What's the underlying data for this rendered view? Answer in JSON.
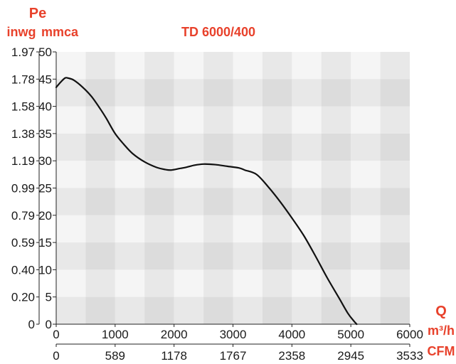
{
  "chart_data": {
    "type": "line",
    "title": "TD 6000/400",
    "y_axis": {
      "symbol": "Pe",
      "left_unit": "inwg",
      "right_unit": "mmca",
      "ticks_mmca": [
        "0",
        "5",
        "10",
        "15",
        "20",
        "25",
        "30",
        "35",
        "40",
        "45",
        "50"
      ],
      "ticks_inwg": [
        "0",
        "0.20",
        "0.40",
        "0.59",
        "0.79",
        "0.99",
        "1.19",
        "1.38",
        "1.58",
        "1.78",
        "1.97"
      ],
      "ylim": [
        0,
        50
      ]
    },
    "x_axis": {
      "symbol": "Q",
      "unit_primary": "m³/h",
      "unit_secondary": "CFM",
      "ticks_m3h": [
        "0",
        "1000",
        "2000",
        "3000",
        "4000",
        "5000",
        "6000"
      ],
      "ticks_cfm": [
        "0",
        "589",
        "1178",
        "1767",
        "2358",
        "2945",
        "3533"
      ],
      "xlim": [
        0,
        6000
      ]
    },
    "grid": true,
    "series": [
      {
        "x": [
          0,
          80,
          150,
          200,
          300,
          450,
          600,
          750,
          850,
          1000,
          1150,
          1300,
          1500,
          1700,
          1850,
          1950,
          2100,
          2200,
          2350,
          2500,
          2700,
          2900,
          3100,
          3200,
          3400,
          3600,
          3800,
          4000,
          4200,
          4400,
          4600,
          4800,
          4950,
          5050,
          5100
        ],
        "y": [
          43.5,
          44.5,
          45.2,
          45.2,
          44.8,
          43.5,
          41.8,
          39.5,
          37.8,
          35.0,
          33.0,
          31.3,
          29.8,
          28.8,
          28.4,
          28.3,
          28.6,
          28.8,
          29.2,
          29.4,
          29.3,
          29.0,
          28.7,
          28.3,
          27.5,
          25.2,
          22.5,
          19.5,
          16.3,
          12.5,
          8.5,
          4.8,
          2.0,
          0.6,
          0
        ]
      }
    ]
  }
}
